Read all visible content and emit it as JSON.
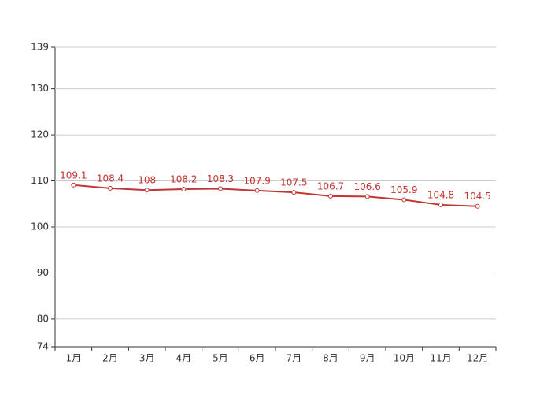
{
  "chart_data": {
    "type": "line",
    "categories": [
      "1月",
      "2月",
      "3月",
      "4月",
      "5月",
      "6月",
      "7月",
      "8月",
      "9月",
      "10月",
      "11月",
      "12月"
    ],
    "values": [
      109.1,
      108.4,
      108,
      108.2,
      108.3,
      107.9,
      107.5,
      106.7,
      106.6,
      105.9,
      104.8,
      104.5
    ],
    "color": "#c23531",
    "ylim": [
      74,
      139
    ],
    "yticks": [
      74,
      80,
      90,
      100,
      110,
      120,
      130,
      139
    ],
    "grid": true
  }
}
